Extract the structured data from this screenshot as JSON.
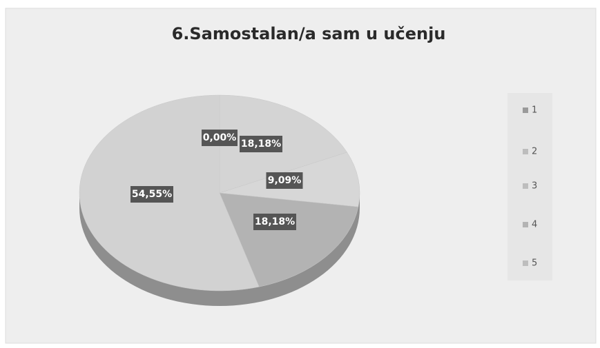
{
  "chart_data": {
    "type": "pie3d",
    "title": "6.Samostalan/a sam u učenju",
    "categories": [
      "1",
      "2",
      "3",
      "4",
      "5"
    ],
    "values": [
      0,
      18.18,
      9.09,
      18.18,
      54.55
    ],
    "value_labels": [
      "0,00%",
      "18,18%",
      "9,09%",
      "18,18%",
      "54,55%"
    ],
    "colors": [
      "#9a9a9a",
      "#d4d4d4",
      "#d7d7d7",
      "#b3b3b3",
      "#d2d2d2"
    ],
    "legend": "right"
  }
}
